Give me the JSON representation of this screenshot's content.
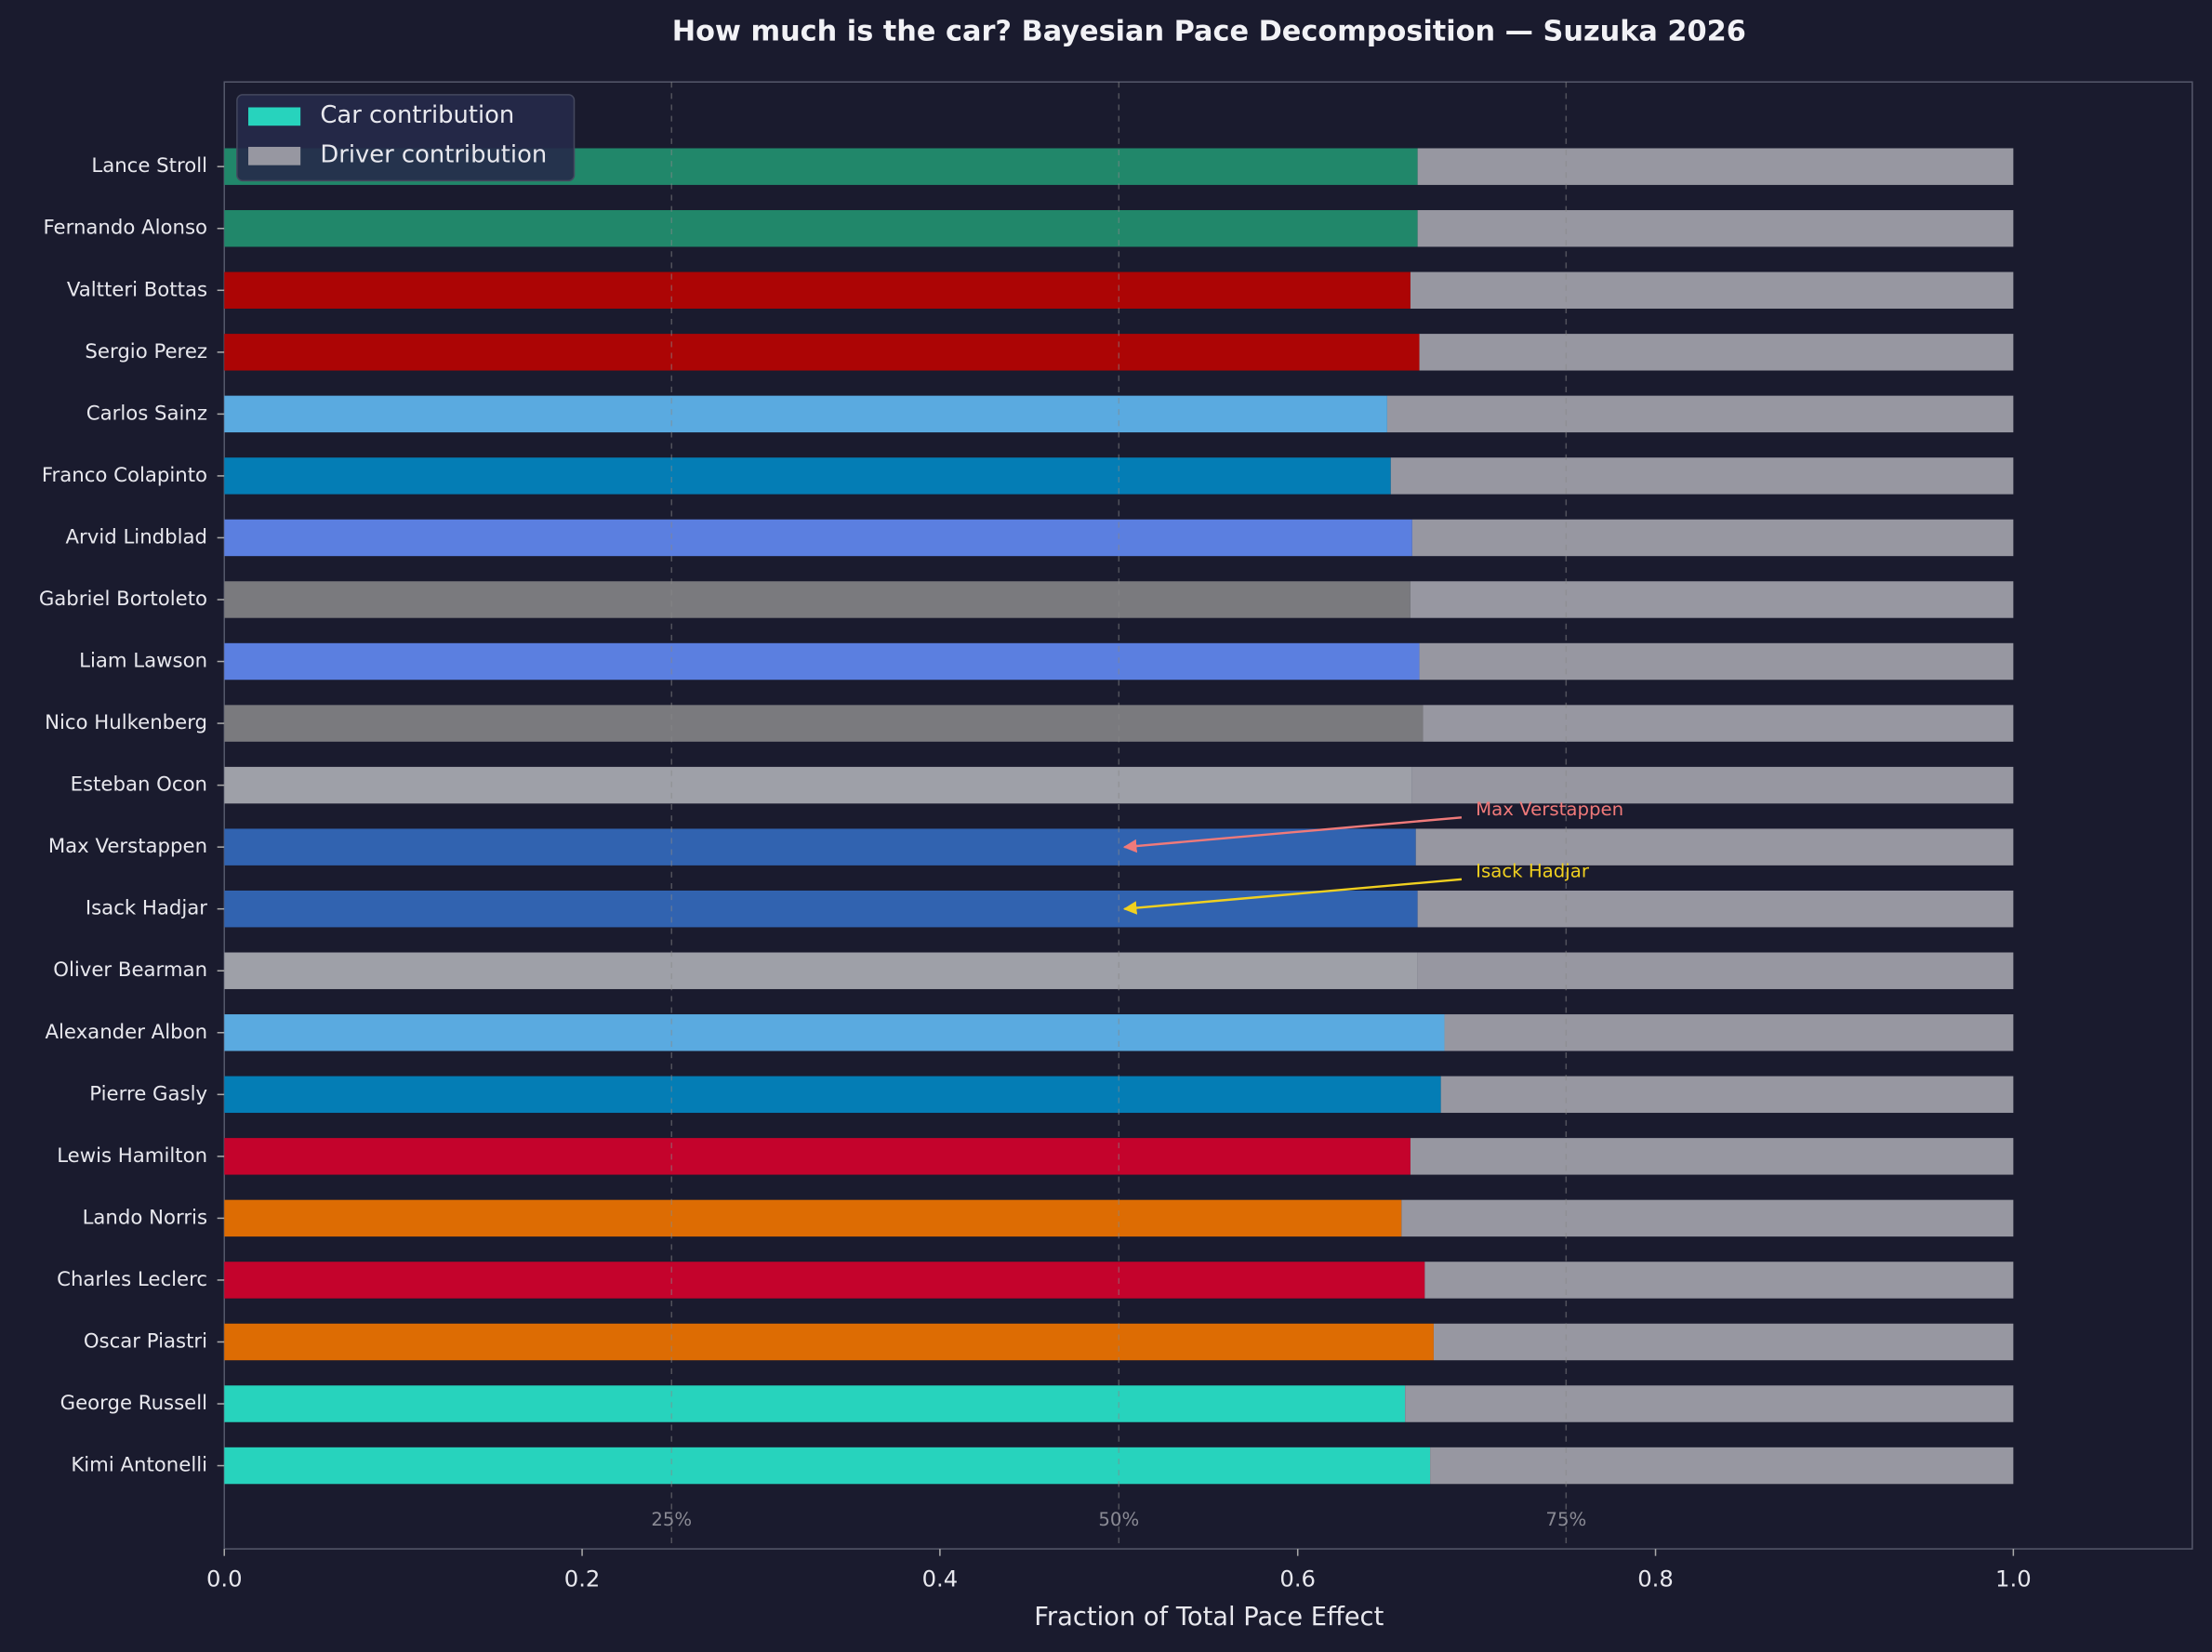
{
  "chart_data": {
    "type": "stacked_barh",
    "title": "How much is the car? Bayesian Pace Decomposition — Suzuka 2026",
    "x_label": "Fraction of Total Pace Effect",
    "categories": [
      "Lance Stroll",
      "Fernando Alonso",
      "Valtteri Bottas",
      "Sergio Perez",
      "Carlos Sainz",
      "Franco Colapinto",
      "Arvid Lindblad",
      "Gabriel Bortoleto",
      "Liam Lawson",
      "Nico Hulkenberg",
      "Esteban Ocon",
      "Max Verstappen",
      "Isack Hadjar",
      "Oliver Bearman",
      "Alexander Albon",
      "Pierre Gasly",
      "Lewis Hamilton",
      "Lando Norris",
      "Charles Leclerc",
      "Oscar Piastri",
      "George Russell",
      "Kimi Antonelli"
    ],
    "series": [
      {
        "name": "Car contribution",
        "color": "#27d3bd",
        "colors": [
          "#21876a",
          "#21876a",
          "#ac0505",
          "#ac0505",
          "#5aaae0",
          "#047db5",
          "#5b7fe0",
          "#7a7a7e",
          "#5b7fe0",
          "#7a7a7e",
          "#9ea0a8",
          "#3163b0",
          "#3163b0",
          "#9ea0a8",
          "#5aaae0",
          "#047db5",
          "#c4032c",
          "#dd6c03",
          "#c4032c",
          "#dd6c03",
          "#27d3bd",
          "#27d3bd"
        ],
        "values": [
          0.667,
          0.667,
          0.663,
          0.668,
          0.65,
          0.652,
          0.664,
          0.663,
          0.668,
          0.67,
          0.664,
          0.666,
          0.667,
          0.667,
          0.682,
          0.68,
          0.663,
          0.658,
          0.671,
          0.676,
          0.66,
          0.674
        ]
      },
      {
        "name": "Driver contribution",
        "color": "#9797a1",
        "values": [
          0.333,
          0.333,
          0.337,
          0.332,
          0.35,
          0.348,
          0.336,
          0.337,
          0.332,
          0.33,
          0.336,
          0.334,
          0.333,
          0.333,
          0.318,
          0.32,
          0.337,
          0.342,
          0.329,
          0.324,
          0.34,
          0.326
        ]
      }
    ],
    "xlim": [
      0,
      1.1
    ],
    "xticks": [
      {
        "value": 0,
        "label": "0.0"
      },
      0.2,
      0.4,
      0.6,
      0.8,
      {
        "value": 1,
        "label": "1.0"
      }
    ],
    "ref_lines": [
      {
        "value": 0.25,
        "label": "25%"
      },
      {
        "value": 0.5,
        "label": "50%"
      },
      {
        "value": 0.75,
        "label": "75%"
      }
    ],
    "annotations": [
      {
        "text": "Max Verstappen",
        "x": 0.5,
        "category_index": 11,
        "color": "#f07a7a"
      },
      {
        "text": "Isack Hadjar",
        "x": 0.5,
        "category_index": 12,
        "color": "#f0d020"
      }
    ],
    "legend": "upper left"
  }
}
